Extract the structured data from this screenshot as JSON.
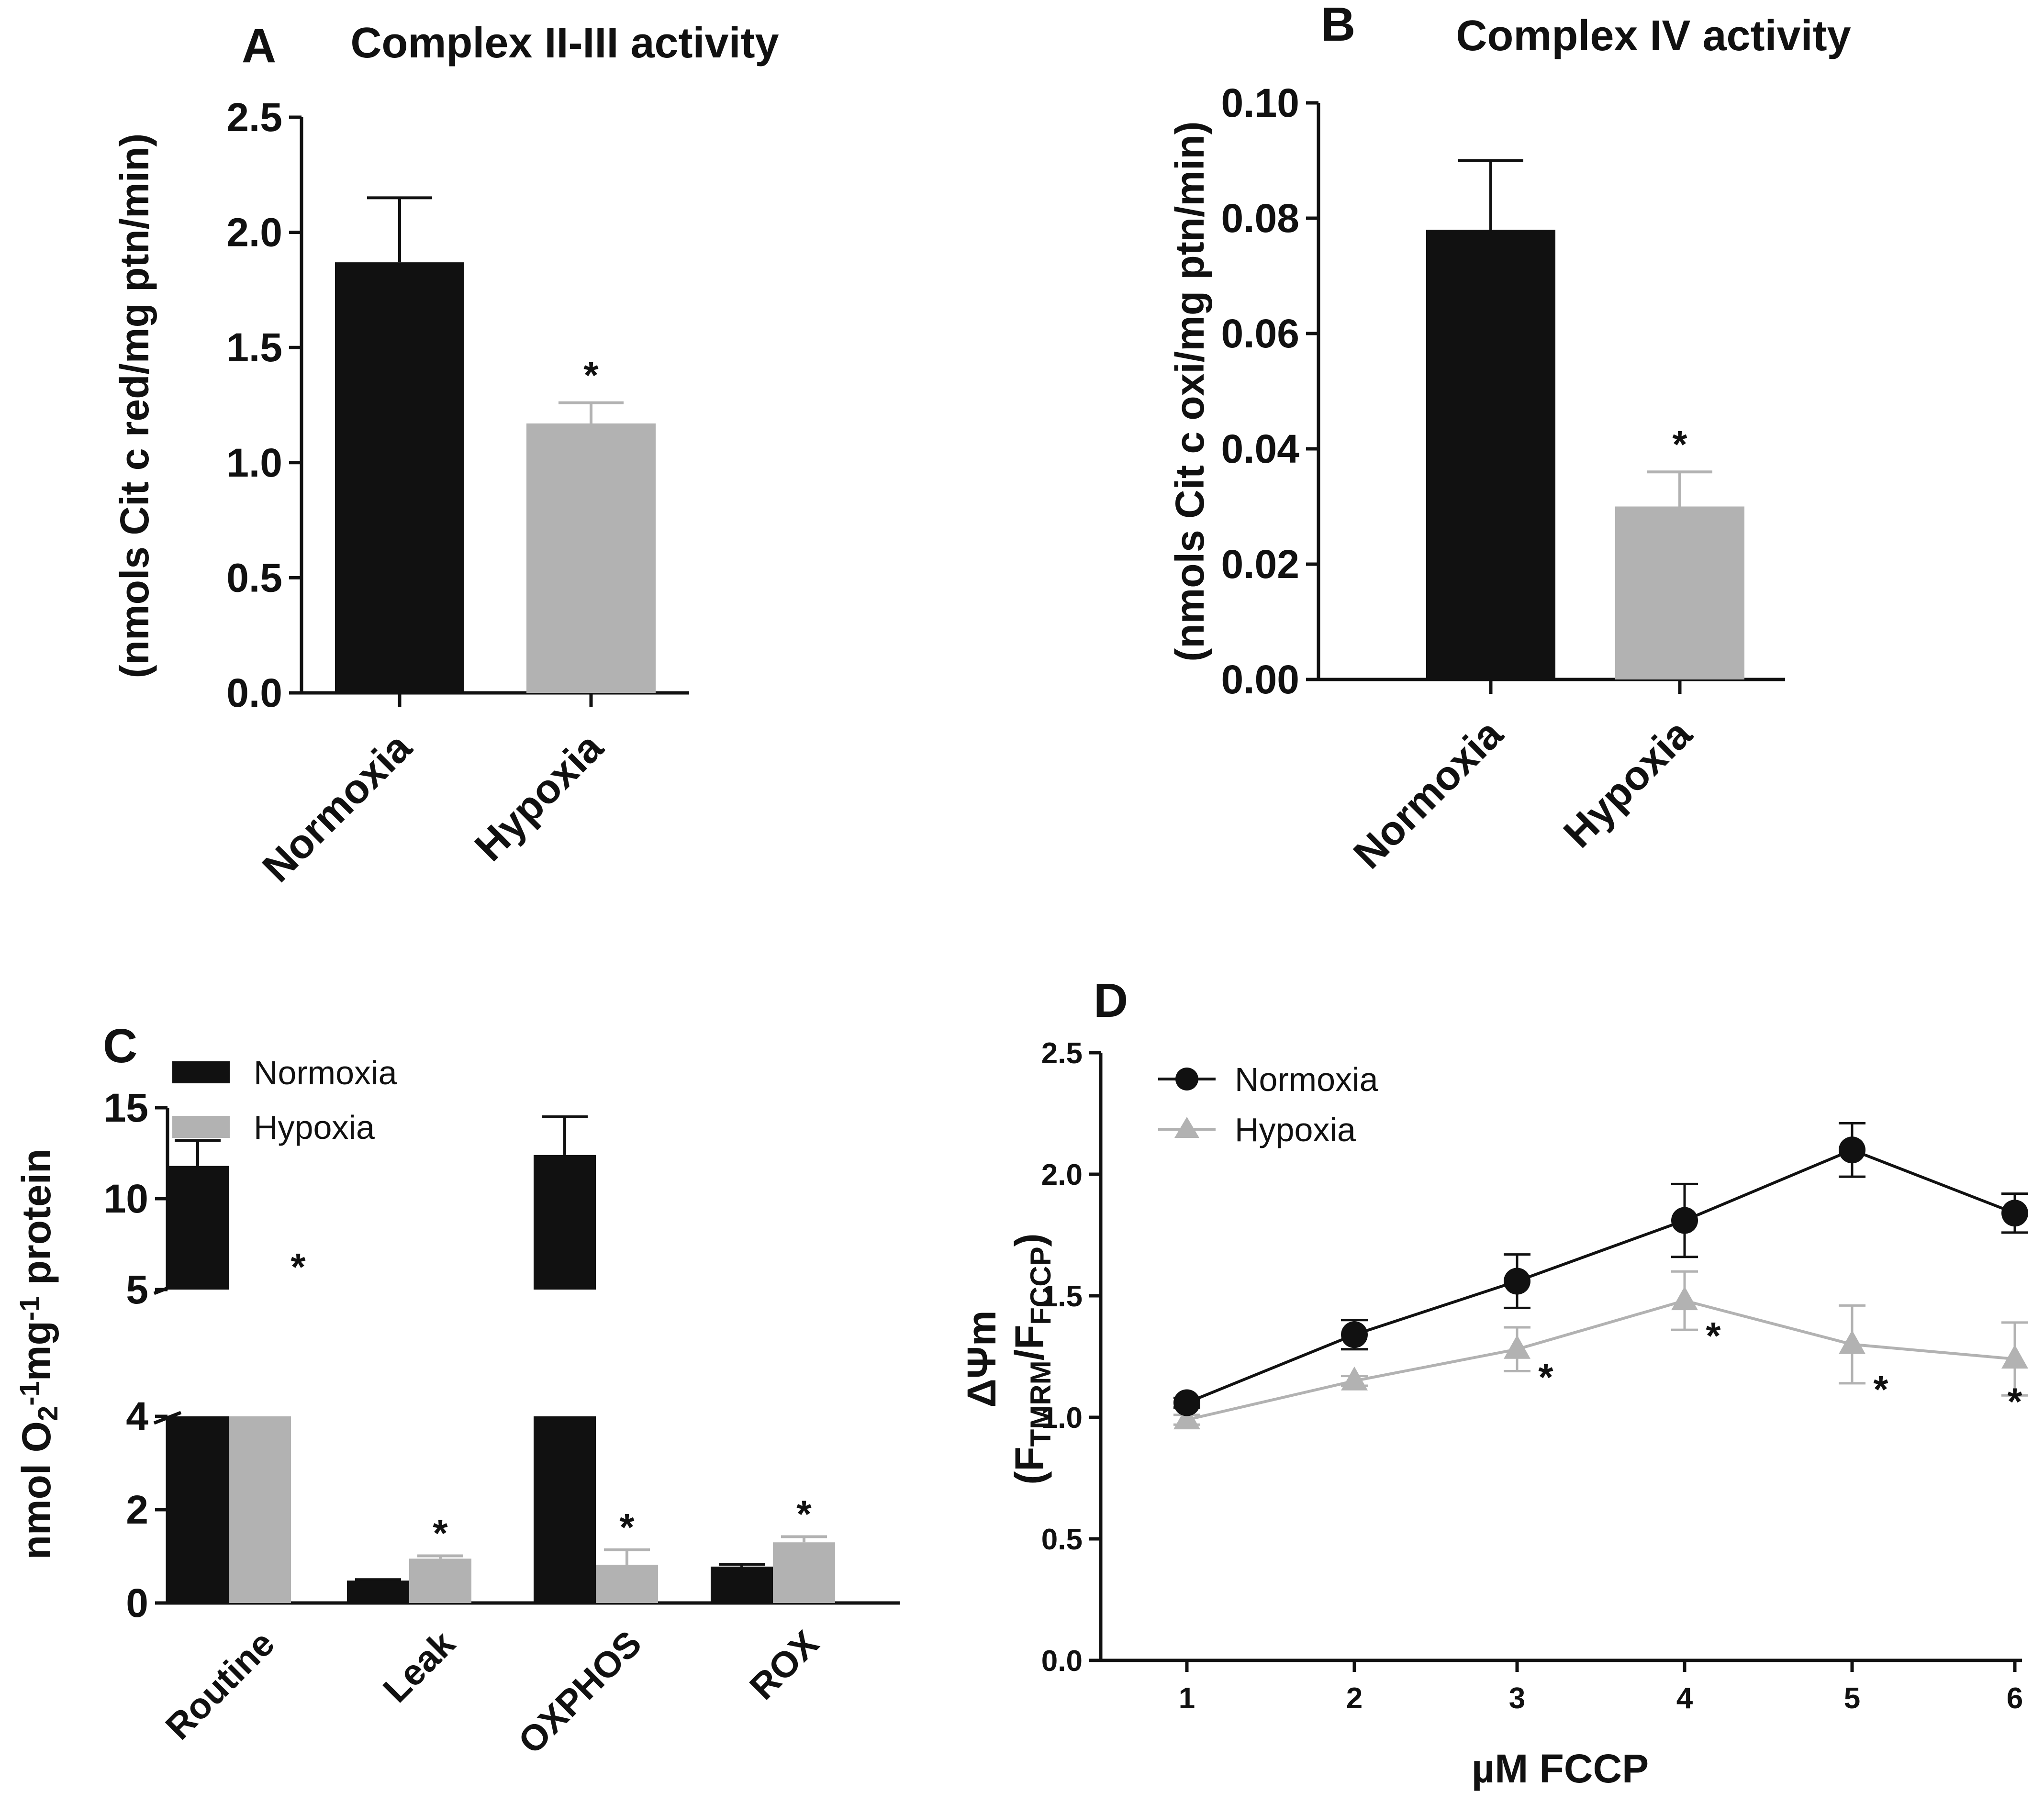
{
  "colors": {
    "normoxia": "#111111",
    "hypoxia": "#b2b2b2",
    "axis": "#111111"
  },
  "chart_data": [
    {
      "panel": "A",
      "type": "bar",
      "title": "Complex II-III activity",
      "ylabel": "(nmols Cit c red/mg ptn/min)",
      "ylim": [
        0,
        2.5
      ],
      "yticks": [
        "0.0",
        "0.5",
        "1.0",
        "1.5",
        "2.0",
        "2.5"
      ],
      "categories": [
        "Normoxia",
        "Hypoxia"
      ],
      "values": [
        1.87,
        1.17
      ],
      "errors": [
        0.28,
        0.09
      ],
      "significant": [
        false,
        true
      ],
      "star": "*"
    },
    {
      "panel": "B",
      "type": "bar",
      "title": "Complex IV activity",
      "ylabel": "(nmols Cit c oxi/mg ptn/min)",
      "ylim": [
        0,
        0.1
      ],
      "yticks": [
        "0.00",
        "0.02",
        "0.04",
        "0.06",
        "0.08",
        "0.10"
      ],
      "categories": [
        "Normoxia",
        "Hypoxia"
      ],
      "values": [
        0.078,
        0.03
      ],
      "errors": [
        0.012,
        0.006
      ],
      "significant": [
        false,
        true
      ],
      "star": "*"
    },
    {
      "panel": "C",
      "type": "bar",
      "ylabel_parts": [
        "nmol O",
        "2",
        "-1",
        "mg",
        "-1",
        " protein"
      ],
      "broken_axis": {
        "lower": [
          0,
          4
        ],
        "upper": [
          5,
          15
        ]
      },
      "yticks_lower": [
        "0",
        "2",
        "4"
      ],
      "yticks_upper": [
        "5",
        "10",
        "15"
      ],
      "categories": [
        "Routine",
        "Leak",
        "OXPHOS",
        "ROX"
      ],
      "legend": [
        "Normoxia",
        "Hypoxia"
      ],
      "series": [
        {
          "name": "Normoxia",
          "values": [
            11.8,
            0.48,
            12.4,
            0.78
          ],
          "errors": [
            1.4,
            0.02,
            2.1,
            0.05
          ]
        },
        {
          "name": "Hypoxia",
          "values": [
            4.0,
            0.95,
            0.82,
            1.3
          ],
          "errors": [
            0,
            0.06,
            0.32,
            0.12
          ],
          "significant": [
            true,
            true,
            true,
            true
          ]
        }
      ],
      "star": "*"
    },
    {
      "panel": "D",
      "type": "line",
      "ylabel_main": "ΔΨm",
      "ylabel_sub": [
        "(F",
        "TMRM",
        "/F",
        "FCCP",
        ")"
      ],
      "xlabel": "µM FCCP",
      "ylim": [
        0,
        2.5
      ],
      "yticks": [
        "0.0",
        "0.5",
        "1.0",
        "1.5",
        "2.0",
        "2.5"
      ],
      "x": [
        1,
        2,
        3,
        4,
        5,
        6
      ],
      "xticks": [
        "1",
        "2",
        "3",
        "4",
        "5",
        "6"
      ],
      "legend": [
        "Normoxia",
        "Hypoxia"
      ],
      "series": [
        {
          "name": "Normoxia",
          "values": [
            1.06,
            1.34,
            1.56,
            1.81,
            2.1,
            1.84
          ],
          "errors": [
            0.02,
            0.06,
            0.11,
            0.15,
            0.11,
            0.08
          ]
        },
        {
          "name": "Hypoxia",
          "values": [
            0.99,
            1.15,
            1.28,
            1.48,
            1.3,
            1.24
          ],
          "errors": [
            0.02,
            0.02,
            0.09,
            0.12,
            0.16,
            0.15
          ],
          "significant": [
            false,
            false,
            true,
            true,
            true,
            true
          ]
        }
      ],
      "star": "*"
    }
  ]
}
